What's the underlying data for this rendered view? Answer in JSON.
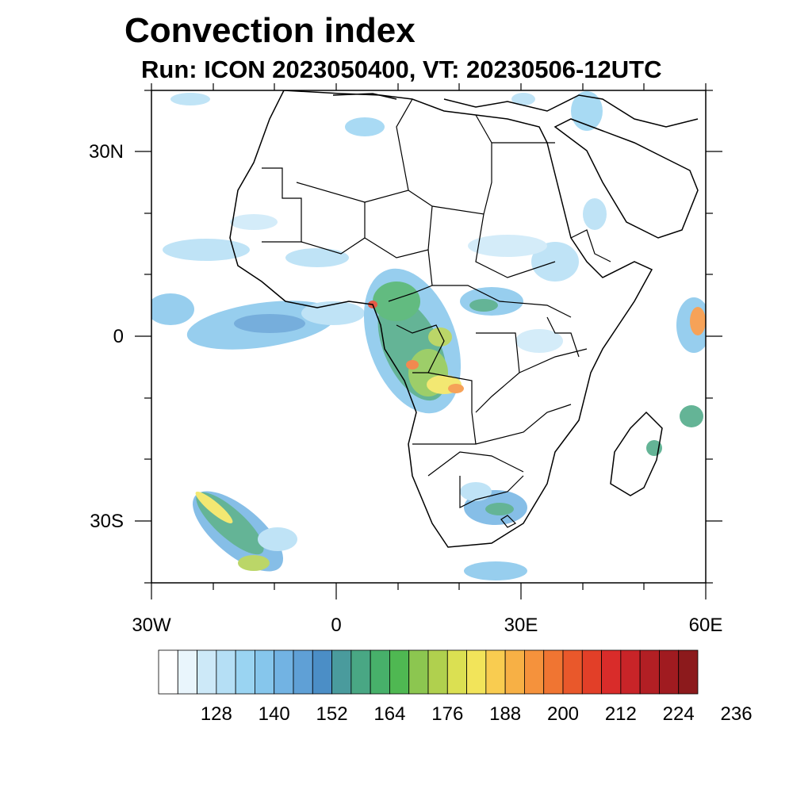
{
  "title": "Convection index",
  "subtitle": "Run: ICON 2023050400,  VT: 20230506-12UTC",
  "axes": {
    "lat_labels": [
      "30N",
      "0",
      "30S"
    ],
    "lon_labels": [
      "30W",
      "0",
      "30E",
      "60E"
    ],
    "lat_range": [
      -40,
      40
    ],
    "lon_range": [
      -30,
      60
    ]
  },
  "colorbar": {
    "labels": [
      "128",
      "140",
      "152",
      "164",
      "176",
      "188",
      "200",
      "212",
      "224",
      "236"
    ],
    "colors": [
      "#ffffff",
      "#e9f5fc",
      "#cde9f8",
      "#b5dff5",
      "#9ad4f2",
      "#86c6ec",
      "#72b3e3",
      "#5fa0d6",
      "#4b8ec6",
      "#4a9b9d",
      "#49a784",
      "#47b06a",
      "#4fb852",
      "#8cc650",
      "#b0d04e",
      "#dbe052",
      "#f2e45a",
      "#f9cc50",
      "#f7b045",
      "#f5923c",
      "#f07532",
      "#e9582b",
      "#e23f28",
      "#d92c2a",
      "#c82428",
      "#b21f24",
      "#a01b20",
      "#8c1a1c"
    ]
  }
}
